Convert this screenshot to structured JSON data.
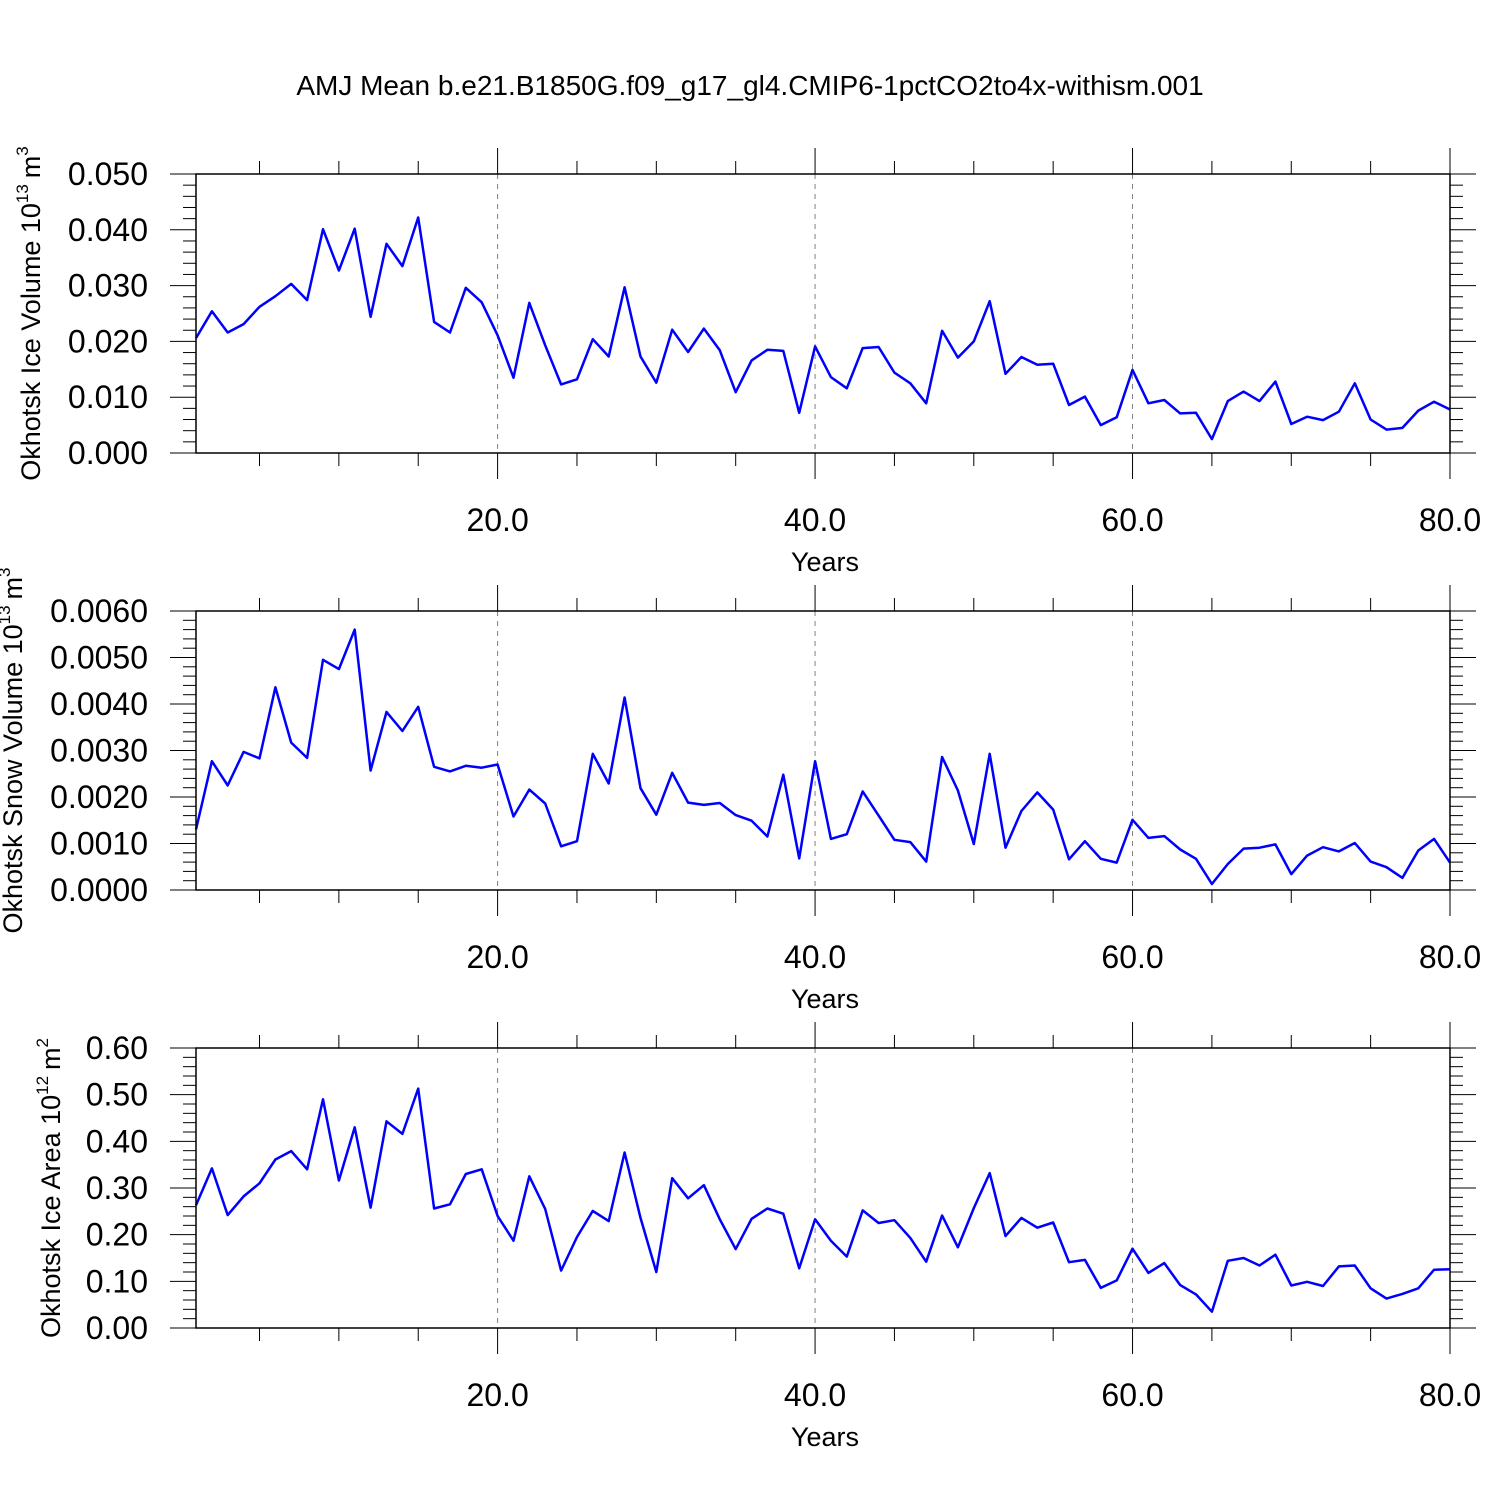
{
  "title": "AMJ Mean b.e21.B1850G.f09_g17_gl4.CMIP6-1pctCO2to4x-withism.001",
  "colors": {
    "line": "#0000ff",
    "axis": "#000000",
    "grid": "#808080"
  },
  "chart_data": [
    {
      "type": "line",
      "ylabel": "Okhotsk Ice Volume 10",
      "ylabel_sup": "13",
      "ylabel_unit": "m",
      "ylabel_unit_sup": "3",
      "xlabel": "Years",
      "xlim": [
        1,
        80
      ],
      "ylim": [
        0,
        0.05
      ],
      "xticks": [
        20,
        40,
        60,
        80
      ],
      "xtick_labels": [
        "20.0",
        "40.0",
        "60.0",
        "80.0"
      ],
      "yticks": [
        0,
        0.01,
        0.02,
        0.03,
        0.04,
        0.05
      ],
      "ytick_labels": [
        "0.000",
        "0.010",
        "0.020",
        "0.030",
        "0.040",
        "0.050"
      ],
      "grid": "vertical dashed at major x ticks",
      "series": [
        {
          "x": [
            1,
            2,
            3,
            4,
            5,
            6,
            7,
            8,
            9,
            10,
            11,
            12,
            13,
            14,
            15,
            16,
            17,
            18,
            19,
            20,
            21,
            22,
            23,
            24,
            25,
            26,
            27,
            28,
            29,
            30,
            31,
            32,
            33,
            34,
            35,
            36,
            37,
            38,
            39,
            40,
            41,
            42,
            43,
            44,
            45,
            46,
            47,
            48,
            49,
            50,
            51,
            52,
            53,
            54,
            55,
            56,
            57,
            58,
            59,
            60,
            61,
            62,
            63,
            64,
            65,
            66,
            67,
            68,
            69,
            70,
            71,
            72,
            73,
            74,
            75,
            76,
            77,
            78,
            79,
            80
          ],
          "values": [
            0.0206,
            0.0254,
            0.0216,
            0.0231,
            0.0262,
            0.0281,
            0.0303,
            0.0274,
            0.0401,
            0.0327,
            0.0402,
            0.0244,
            0.0375,
            0.0335,
            0.0422,
            0.0235,
            0.0216,
            0.0296,
            0.027,
            0.0211,
            0.0135,
            0.0269,
            0.0193,
            0.0123,
            0.0132,
            0.0204,
            0.0173,
            0.0297,
            0.0173,
            0.0126,
            0.0221,
            0.0181,
            0.0223,
            0.0184,
            0.0109,
            0.0166,
            0.0185,
            0.0183,
            0.0072,
            0.0191,
            0.0136,
            0.0116,
            0.0188,
            0.019,
            0.0144,
            0.0125,
            0.0089,
            0.0219,
            0.0171,
            0.02,
            0.0272,
            0.0142,
            0.0172,
            0.0158,
            0.016,
            0.0086,
            0.0101,
            0.005,
            0.0064,
            0.0149,
            0.0089,
            0.0095,
            0.0071,
            0.0072,
            0.0025,
            0.0093,
            0.011,
            0.0093,
            0.0128,
            0.0052,
            0.0065,
            0.0059,
            0.0074,
            0.0125,
            0.006,
            0.0042,
            0.0045,
            0.0076,
            0.0092,
            0.0078
          ]
        }
      ]
    },
    {
      "type": "line",
      "ylabel": "Okhotsk Snow Volume 10",
      "ylabel_sup": "13",
      "ylabel_unit": "m",
      "ylabel_unit_sup": "3",
      "xlabel": "Years",
      "xlim": [
        1,
        80
      ],
      "ylim": [
        0,
        0.006
      ],
      "xticks": [
        20,
        40,
        60,
        80
      ],
      "xtick_labels": [
        "20.0",
        "40.0",
        "60.0",
        "80.0"
      ],
      "yticks": [
        0,
        0.001,
        0.002,
        0.003,
        0.004,
        0.005,
        0.006
      ],
      "ytick_labels": [
        "0.0000",
        "0.0010",
        "0.0020",
        "0.0030",
        "0.0040",
        "0.0050",
        "0.0060"
      ],
      "grid": "vertical dashed at major x ticks",
      "series": [
        {
          "x": [
            1,
            2,
            3,
            4,
            5,
            6,
            7,
            8,
            9,
            10,
            11,
            12,
            13,
            14,
            15,
            16,
            17,
            18,
            19,
            20,
            21,
            22,
            23,
            24,
            25,
            26,
            27,
            28,
            29,
            30,
            31,
            32,
            33,
            34,
            35,
            36,
            37,
            38,
            39,
            40,
            41,
            42,
            43,
            44,
            45,
            46,
            47,
            48,
            49,
            50,
            51,
            52,
            53,
            54,
            55,
            56,
            57,
            58,
            59,
            60,
            61,
            62,
            63,
            64,
            65,
            66,
            67,
            68,
            69,
            70,
            71,
            72,
            73,
            74,
            75,
            76,
            77,
            78,
            79,
            80
          ],
          "values": [
            0.0013,
            0.00277,
            0.00225,
            0.00297,
            0.00283,
            0.00436,
            0.00317,
            0.00284,
            0.00495,
            0.00475,
            0.0056,
            0.00257,
            0.00383,
            0.00342,
            0.00394,
            0.00265,
            0.00255,
            0.00267,
            0.00263,
            0.0027,
            0.00158,
            0.00216,
            0.00186,
            0.00094,
            0.00105,
            0.00293,
            0.00229,
            0.00414,
            0.00219,
            0.00162,
            0.00252,
            0.00188,
            0.00183,
            0.00187,
            0.00161,
            0.00149,
            0.00115,
            0.00248,
            0.00068,
            0.00277,
            0.0011,
            0.0012,
            0.00212,
            0.0016,
            0.00108,
            0.00103,
            0.00061,
            0.00286,
            0.00214,
            0.00099,
            0.00293,
            0.00091,
            0.0017,
            0.0021,
            0.00173,
            0.00066,
            0.00105,
            0.00067,
            0.00059,
            0.00151,
            0.00112,
            0.00116,
            0.00087,
            0.00067,
            0.00013,
            0.00056,
            0.00089,
            0.00091,
            0.00098,
            0.00034,
            0.00074,
            0.00092,
            0.00083,
            0.00101,
            0.00061,
            0.00049,
            0.00026,
            0.00085,
            0.0011,
            0.00059
          ]
        }
      ]
    },
    {
      "type": "line",
      "ylabel": "Okhotsk Ice Area 10",
      "ylabel_sup": "12",
      "ylabel_unit": "m",
      "ylabel_unit_sup": "2",
      "xlabel": "Years",
      "xlim": [
        1,
        80
      ],
      "ylim": [
        0,
        0.6
      ],
      "xticks": [
        20,
        40,
        60,
        80
      ],
      "xtick_labels": [
        "20.0",
        "40.0",
        "60.0",
        "80.0"
      ],
      "yticks": [
        0,
        0.1,
        0.2,
        0.3,
        0.4,
        0.5,
        0.6
      ],
      "ytick_labels": [
        "0.00",
        "0.10",
        "0.20",
        "0.30",
        "0.40",
        "0.50",
        "0.60"
      ],
      "grid": "vertical dashed at major x ticks",
      "series": [
        {
          "x": [
            1,
            2,
            3,
            4,
            5,
            6,
            7,
            8,
            9,
            10,
            11,
            12,
            13,
            14,
            15,
            16,
            17,
            18,
            19,
            20,
            21,
            22,
            23,
            24,
            25,
            26,
            27,
            28,
            29,
            30,
            31,
            32,
            33,
            34,
            35,
            36,
            37,
            38,
            39,
            40,
            41,
            42,
            43,
            44,
            45,
            46,
            47,
            48,
            49,
            50,
            51,
            52,
            53,
            54,
            55,
            56,
            57,
            58,
            59,
            60,
            61,
            62,
            63,
            64,
            65,
            66,
            67,
            68,
            69,
            70,
            71,
            72,
            73,
            74,
            75,
            76,
            77,
            78,
            79,
            80
          ],
          "values": [
            0.263,
            0.342,
            0.242,
            0.282,
            0.31,
            0.361,
            0.379,
            0.34,
            0.49,
            0.316,
            0.43,
            0.258,
            0.443,
            0.416,
            0.513,
            0.256,
            0.265,
            0.33,
            0.34,
            0.24,
            0.187,
            0.325,
            0.255,
            0.123,
            0.195,
            0.251,
            0.229,
            0.376,
            0.236,
            0.12,
            0.321,
            0.278,
            0.306,
            0.233,
            0.169,
            0.234,
            0.256,
            0.245,
            0.128,
            0.233,
            0.187,
            0.153,
            0.252,
            0.225,
            0.231,
            0.193,
            0.142,
            0.241,
            0.173,
            0.257,
            0.332,
            0.197,
            0.236,
            0.215,
            0.226,
            0.141,
            0.146,
            0.086,
            0.102,
            0.17,
            0.118,
            0.139,
            0.092,
            0.072,
            0.035,
            0.144,
            0.15,
            0.134,
            0.157,
            0.091,
            0.099,
            0.09,
            0.132,
            0.134,
            0.085,
            0.063,
            0.073,
            0.085,
            0.125,
            0.126
          ]
        }
      ]
    }
  ]
}
